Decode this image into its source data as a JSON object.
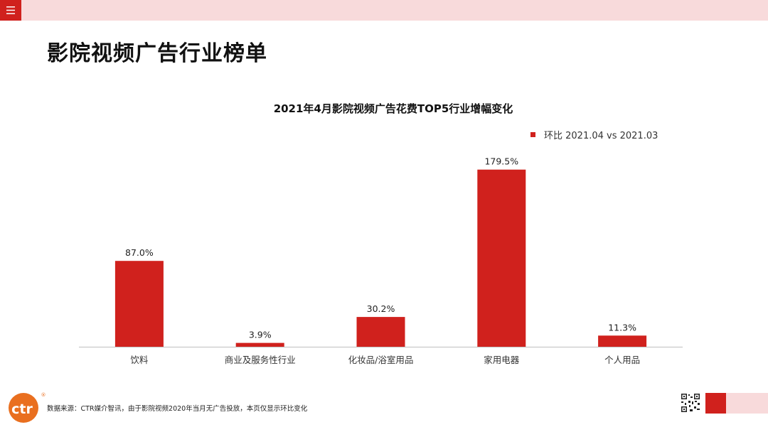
{
  "header": {
    "menu_icon": "hamburger-menu-icon",
    "title": "影院视频广告行业榜单"
  },
  "colors": {
    "accent": "#d0211d",
    "band": "#f8dadb",
    "logo": "#e96f1f"
  },
  "chart_data": {
    "type": "bar",
    "title": "2021年4月影院视频广告花费TOP5行业增幅变化",
    "categories": [
      "饮料",
      "商业及服务性行业",
      "化妆品/浴室用品",
      "家用电器",
      "个人用品"
    ],
    "series": [
      {
        "name": "环比 2021.04 vs 2021.03",
        "values": [
          87.0,
          3.9,
          30.2,
          179.5,
          11.3
        ],
        "labels": [
          "87.0%",
          "3.9%",
          "30.2%",
          "179.5%",
          "11.3%"
        ],
        "color": "#d0211d"
      }
    ],
    "ylim": [
      0,
      180
    ],
    "grid": false,
    "legend_position": "top-right",
    "xlabel": "",
    "ylabel": ""
  },
  "footer": {
    "logo_text": "ctr",
    "logo_mark": "®",
    "note": "数据来源：CTR媒介智讯，由于影院视频2020年当月无广告投放，本页仅显示环比变化",
    "qr_icon": "qr-code-icon"
  }
}
